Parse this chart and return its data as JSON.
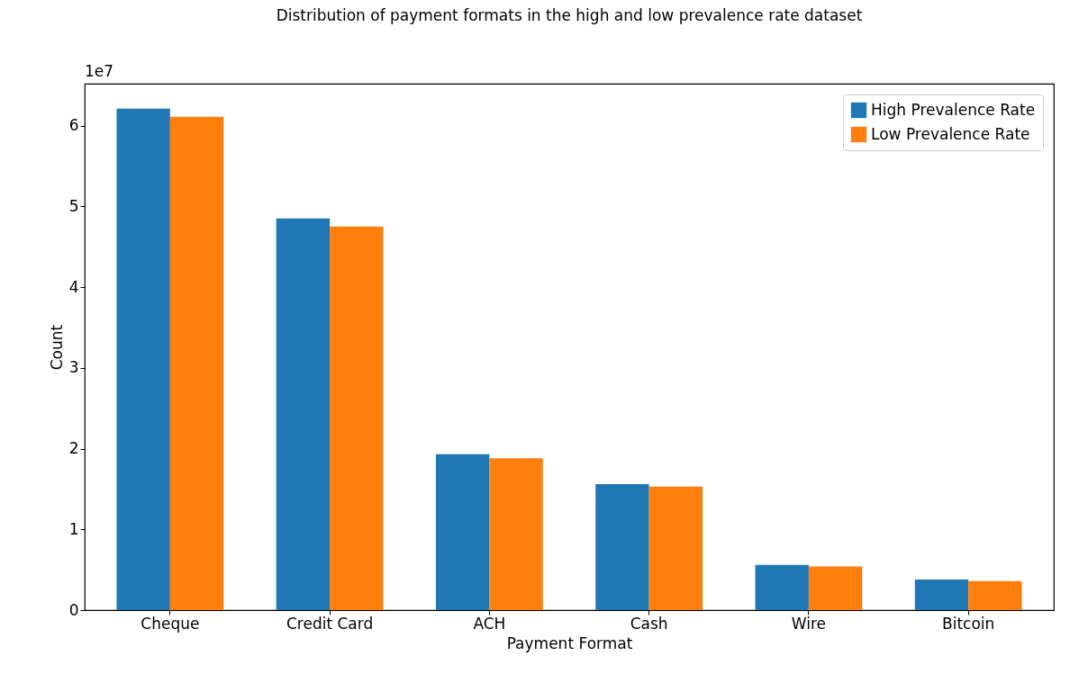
{
  "chart_data": {
    "type": "bar",
    "title": "Distribution of payment formats in the high and low prevalence rate dataset",
    "xlabel": "Payment Format",
    "ylabel": "Count",
    "categories": [
      "Cheque",
      "Credit Card",
      "ACH",
      "Cash",
      "Wire",
      "Bitcoin"
    ],
    "series": [
      {
        "name": "High Prevalence Rate",
        "color": "#1f77b4",
        "values": [
          6.21,
          4.85,
          1.93,
          1.56,
          0.56,
          0.38
        ]
      },
      {
        "name": "Low Prevalence Rate",
        "color": "#ff7f0e",
        "values": [
          6.11,
          4.75,
          1.88,
          1.53,
          0.54,
          0.36
        ]
      }
    ],
    "ylim": [
      0,
      6.52
    ],
    "yticks": [
      0,
      1,
      2,
      3,
      4,
      5,
      6
    ],
    "annotations": [
      "1e7"
    ],
    "legend": "top right",
    "grid": false
  }
}
